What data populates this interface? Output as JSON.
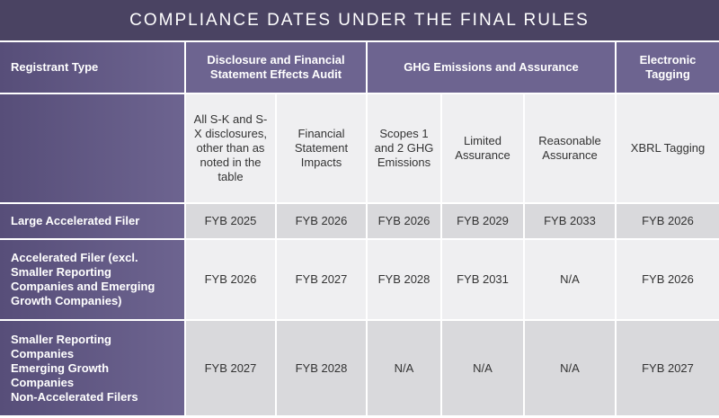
{
  "title": "COMPLIANCE DATES UNDER THE FINAL RULES",
  "header": {
    "registrant_type": "Registrant Type",
    "groups": [
      "Disclosure and Financial Statement Effects Audit",
      "GHG Emissions and Assurance",
      "Electronic Tagging"
    ]
  },
  "subheaders": [
    "All S-K and S-X disclosures, other than as noted in the table",
    "Financial Statement Impacts",
    "Scopes 1 and 2 GHG Emissions",
    "Limited Assurance",
    "Reasonable Assurance",
    "XBRL Tagging"
  ],
  "rows": [
    {
      "label": [
        "Large Accelerated Filer"
      ],
      "values": [
        "FYB 2025",
        "FYB 2026",
        "FYB 2026",
        "FYB 2029",
        "FYB 2033",
        "FYB 2026"
      ]
    },
    {
      "label": [
        "Accelerated Filer (excl. Smaller Reporting Companies and Emerging Growth Companies)"
      ],
      "values": [
        "FYB 2026",
        "FYB 2027",
        "FYB 2028",
        "FYB 2031",
        "N/A",
        "FYB 2026"
      ]
    },
    {
      "label": [
        "Smaller Reporting Companies",
        "Emerging Growth Companies",
        "Non-Accelerated Filers"
      ],
      "values": [
        "FYB 2027",
        "FYB 2028",
        "N/A",
        "N/A",
        "N/A",
        "FYB 2027"
      ]
    }
  ]
}
